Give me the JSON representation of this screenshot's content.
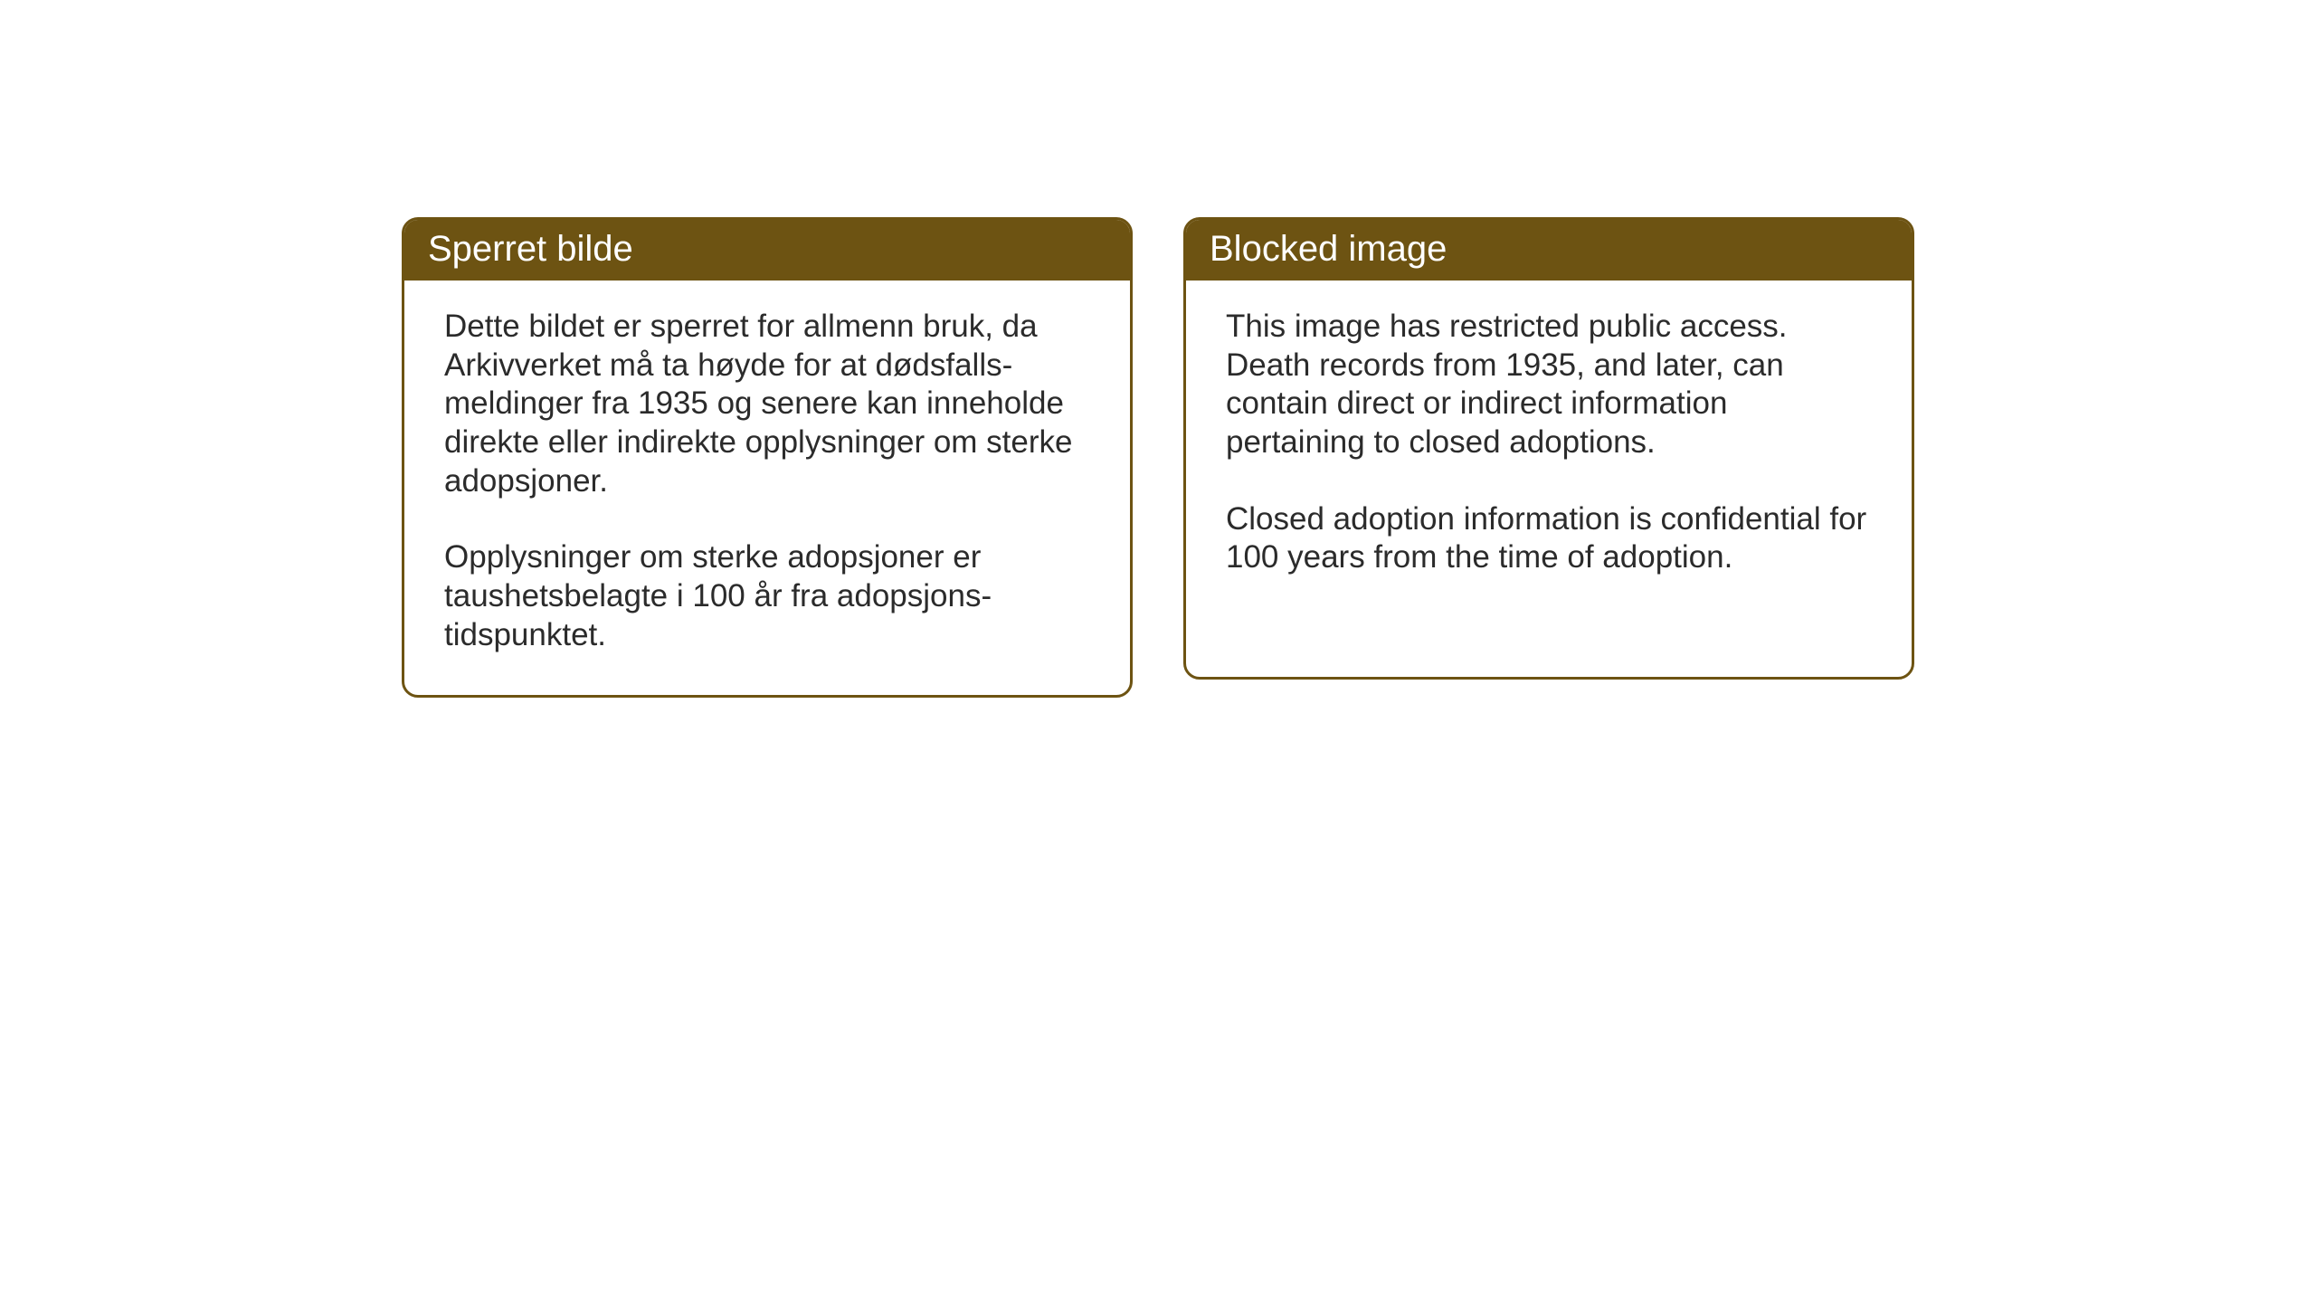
{
  "layout": {
    "background_color": "#ffffff",
    "card_border_color": "#6d5312",
    "header_background_color": "#6d5312",
    "header_text_color": "#ffffff",
    "body_text_color": "#2b2b2b",
    "border_radius": 18,
    "border_width": 3,
    "header_font_size": 40,
    "body_font_size": 35
  },
  "cards": {
    "norwegian": {
      "title": "Sperret bilde",
      "paragraph1": "Dette bildet er sperret for allmenn bruk, da Arkivverket må ta høyde for at dødsfalls-meldinger fra 1935 og senere kan inneholde direkte eller indirekte opplysninger om sterke adopsjoner.",
      "paragraph2": "Opplysninger om sterke adopsjoner er taushetsbelagte i 100 år fra adopsjons-tidspunktet."
    },
    "english": {
      "title": "Blocked image",
      "paragraph1": "This image has restricted public access. Death records from 1935, and later, can contain direct or indirect information pertaining to closed adoptions.",
      "paragraph2": "Closed adoption information is confidential for 100 years from the time of adoption."
    }
  }
}
